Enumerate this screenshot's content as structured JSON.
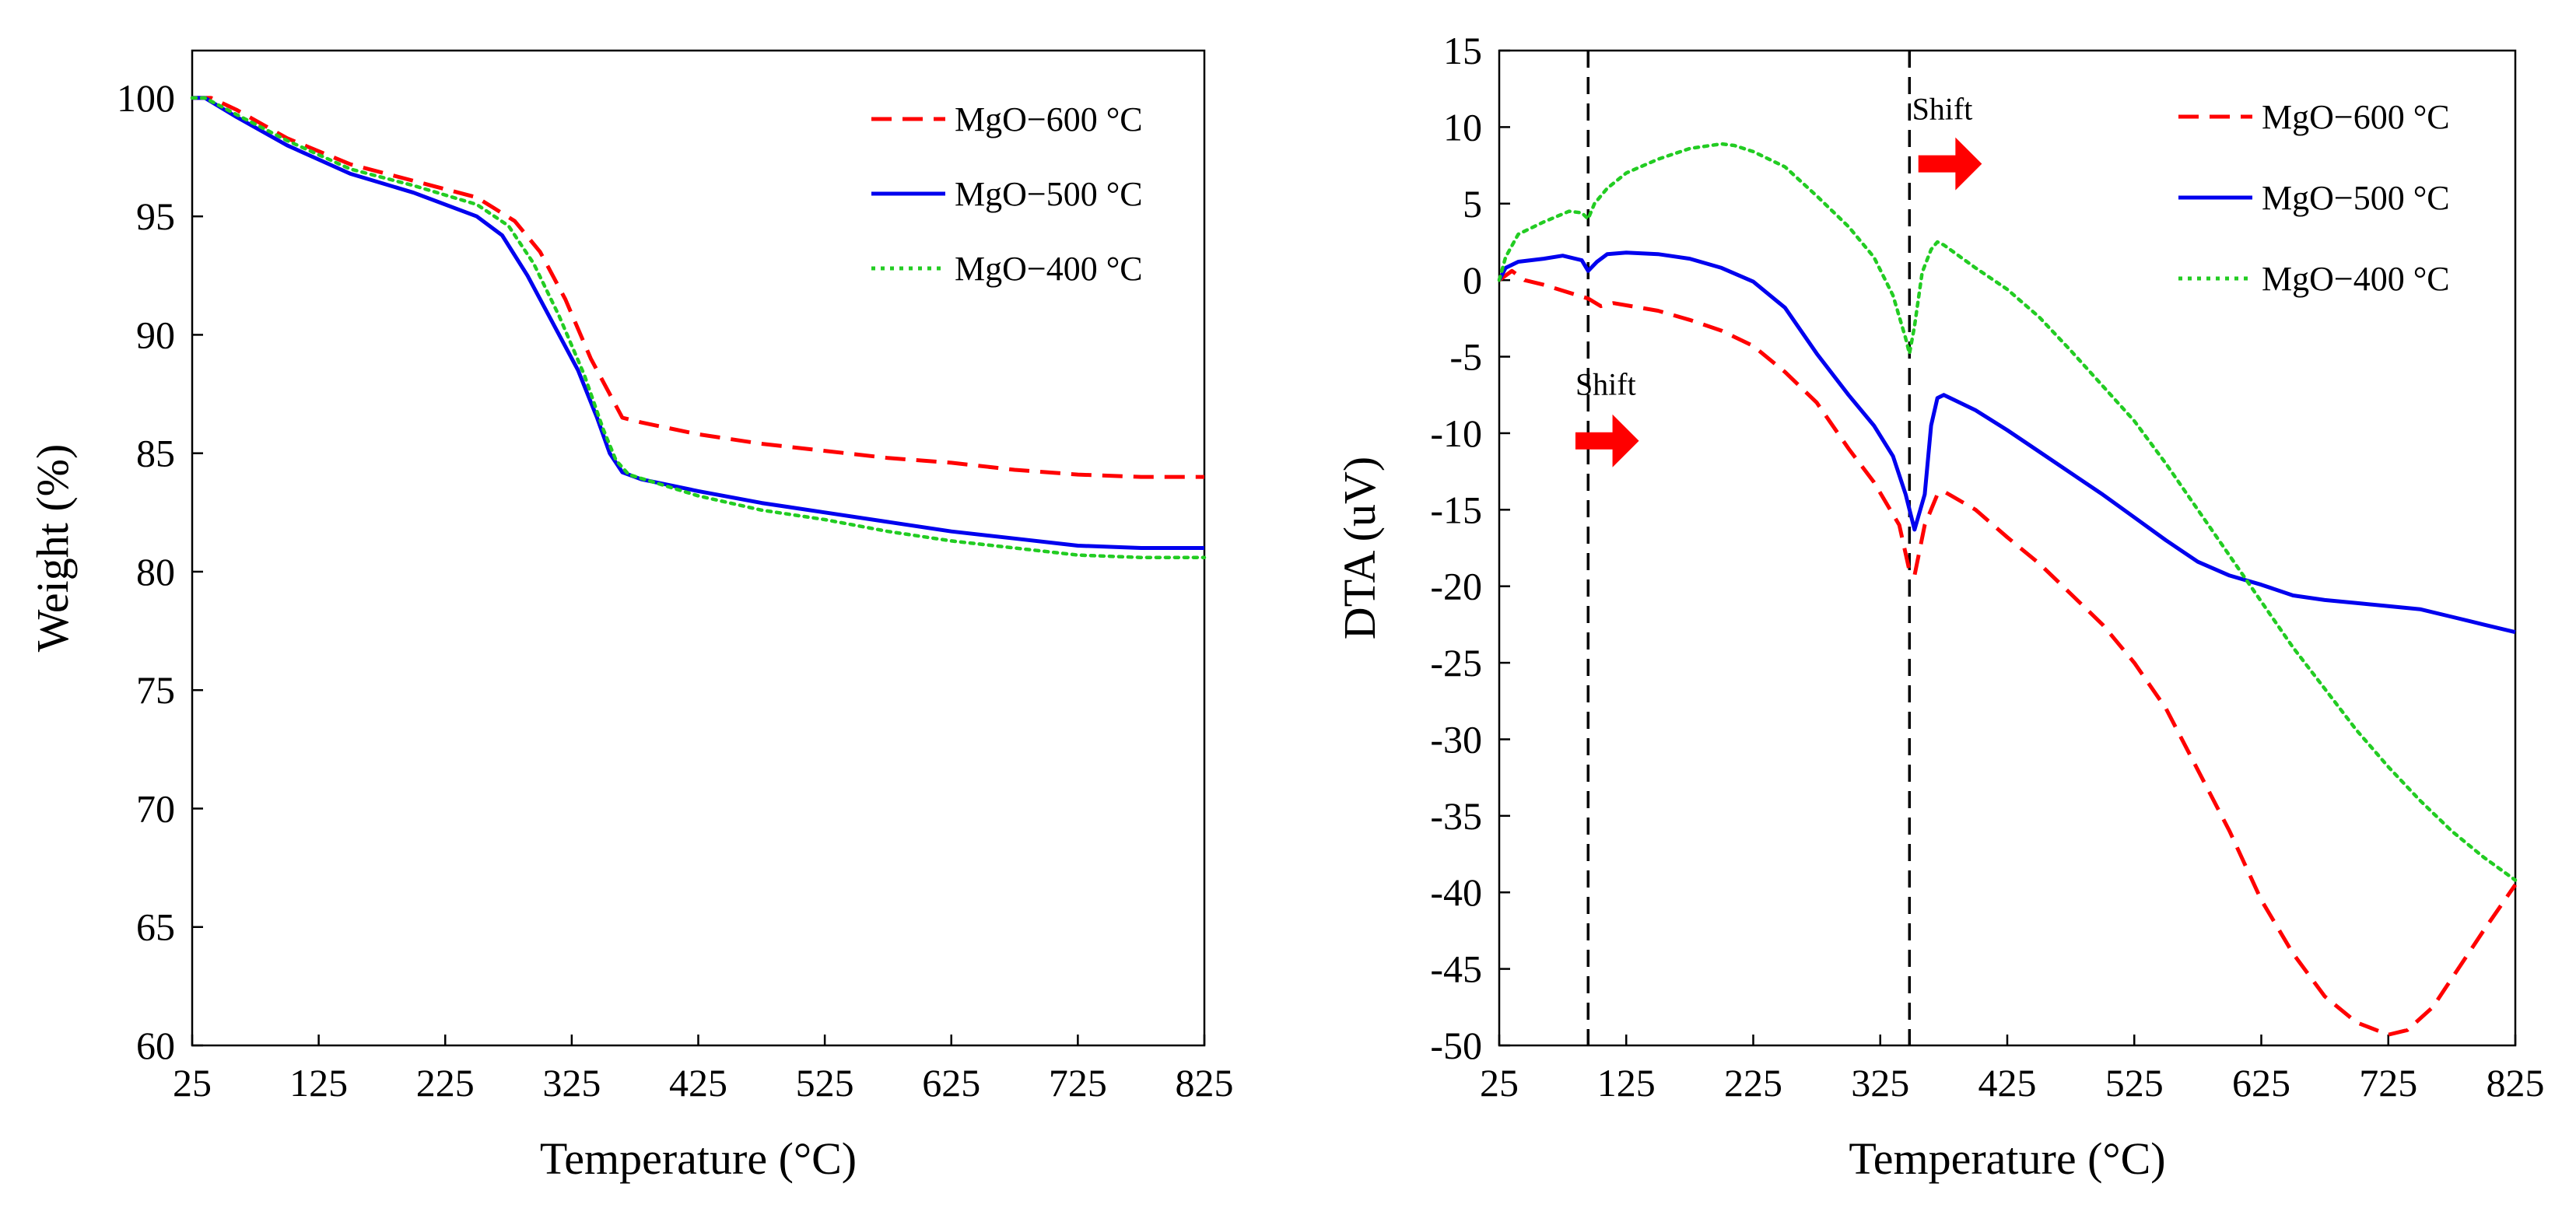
{
  "chart_data": [
    {
      "id": "tga",
      "type": "line",
      "title": "",
      "xlabel": "Temperature (°C)",
      "ylabel": "Weight (%)",
      "xlim": [
        25,
        825
      ],
      "ylim": [
        60,
        102
      ],
      "xticks": [
        25,
        125,
        225,
        325,
        425,
        525,
        625,
        725,
        825
      ],
      "yticks": [
        60,
        65,
        70,
        75,
        80,
        85,
        90,
        95,
        100
      ],
      "grid": false,
      "legend": "top-right",
      "series": [
        {
          "name": "MgO−600 °C",
          "color": "#ff0000",
          "dash": "dashed",
          "points": [
            [
              25,
              100
            ],
            [
              40,
              100
            ],
            [
              60,
              99.5
            ],
            [
              100,
              98.3
            ],
            [
              150,
              97.2
            ],
            [
              200,
              96.5
            ],
            [
              250,
              95.8
            ],
            [
              280,
              94.8
            ],
            [
              300,
              93.5
            ],
            [
              320,
              91.5
            ],
            [
              340,
              89
            ],
            [
              355,
              87.5
            ],
            [
              365,
              86.5
            ],
            [
              380,
              86.3
            ],
            [
              425,
              85.8
            ],
            [
              475,
              85.4
            ],
            [
              525,
              85.1
            ],
            [
              575,
              84.8
            ],
            [
              625,
              84.6
            ],
            [
              675,
              84.3
            ],
            [
              725,
              84.1
            ],
            [
              775,
              84
            ],
            [
              825,
              84
            ]
          ]
        },
        {
          "name": "MgO−500 °C",
          "color": "#0000ee",
          "dash": "solid",
          "points": [
            [
              25,
              100
            ],
            [
              35,
              100
            ],
            [
              60,
              99.2
            ],
            [
              100,
              98
            ],
            [
              150,
              96.8
            ],
            [
              200,
              96
            ],
            [
              250,
              95
            ],
            [
              270,
              94.2
            ],
            [
              290,
              92.5
            ],
            [
              310,
              90.5
            ],
            [
              330,
              88.5
            ],
            [
              345,
              86.5
            ],
            [
              355,
              85
            ],
            [
              365,
              84.2
            ],
            [
              380,
              83.9
            ],
            [
              425,
              83.4
            ],
            [
              475,
              82.9
            ],
            [
              525,
              82.5
            ],
            [
              575,
              82.1
            ],
            [
              625,
              81.7
            ],
            [
              675,
              81.4
            ],
            [
              725,
              81.1
            ],
            [
              775,
              81
            ],
            [
              825,
              81
            ]
          ]
        },
        {
          "name": "MgO−400 °C",
          "color": "#22cc22",
          "dash": "dotted",
          "points": [
            [
              25,
              100
            ],
            [
              35,
              100
            ],
            [
              60,
              99.3
            ],
            [
              100,
              98.2
            ],
            [
              150,
              97
            ],
            [
              200,
              96.3
            ],
            [
              250,
              95.5
            ],
            [
              275,
              94.6
            ],
            [
              295,
              93
            ],
            [
              315,
              90.8
            ],
            [
              335,
              88.3
            ],
            [
              350,
              86
            ],
            [
              360,
              84.7
            ],
            [
              370,
              84.1
            ],
            [
              425,
              83.2
            ],
            [
              475,
              82.6
            ],
            [
              525,
              82.2
            ],
            [
              575,
              81.7
            ],
            [
              625,
              81.3
            ],
            [
              675,
              81
            ],
            [
              725,
              80.7
            ],
            [
              775,
              80.6
            ],
            [
              825,
              80.6
            ]
          ]
        }
      ]
    },
    {
      "id": "dta",
      "type": "line",
      "title": "",
      "xlabel": "Temperature (°C)",
      "ylabel": "DTA (uV)",
      "xlim": [
        25,
        825
      ],
      "ylim": [
        -50,
        15
      ],
      "xticks": [
        25,
        125,
        225,
        325,
        425,
        525,
        625,
        725,
        825
      ],
      "yticks": [
        15,
        10,
        5,
        0,
        -5,
        -10,
        -15,
        -20,
        -25,
        -30,
        -35,
        -40,
        -45,
        -50
      ],
      "grid": false,
      "legend": "top-right",
      "reference_lines_x": [
        95,
        348
      ],
      "annotations": [
        {
          "text": "Shift",
          "x": 85,
          "y": -7.5,
          "arrow_x": [
            85,
            135
          ],
          "arrow_y": -10.5
        },
        {
          "text": "Shift",
          "x": 350,
          "y": 10.5,
          "arrow_x": [
            355,
            405
          ],
          "arrow_y": 7.6
        }
      ],
      "series": [
        {
          "name": "MgO−600 °C",
          "color": "#ff0000",
          "dash": "dashed",
          "points": [
            [
              25,
              0
            ],
            [
              35,
              0.6
            ],
            [
              45,
              0
            ],
            [
              60,
              -0.3
            ],
            [
              95,
              -1.2
            ],
            [
              105,
              -1.7
            ],
            [
              115,
              -1.5
            ],
            [
              150,
              -2
            ],
            [
              175,
              -2.6
            ],
            [
              200,
              -3.3
            ],
            [
              225,
              -4.3
            ],
            [
              250,
              -6
            ],
            [
              275,
              -8
            ],
            [
              300,
              -11
            ],
            [
              320,
              -13.2
            ],
            [
              340,
              -16
            ],
            [
              348,
              -19
            ],
            [
              352,
              -19.3
            ],
            [
              360,
              -16
            ],
            [
              370,
              -14
            ],
            [
              375,
              -13.8
            ],
            [
              400,
              -15
            ],
            [
              425,
              -16.8
            ],
            [
              450,
              -18.5
            ],
            [
              475,
              -20.5
            ],
            [
              500,
              -22.5
            ],
            [
              525,
              -25
            ],
            [
              550,
              -28
            ],
            [
              575,
              -32
            ],
            [
              600,
              -36
            ],
            [
              625,
              -40.5
            ],
            [
              650,
              -44
            ],
            [
              675,
              -46.8
            ],
            [
              700,
              -48.5
            ],
            [
              725,
              -49.3
            ],
            [
              740,
              -49
            ],
            [
              760,
              -47.5
            ],
            [
              780,
              -45
            ],
            [
              800,
              -42.5
            ],
            [
              825,
              -39.5
            ]
          ]
        },
        {
          "name": "MgO−500 °C",
          "color": "#0000ee",
          "dash": "solid",
          "points": [
            [
              25,
              0
            ],
            [
              30,
              0.8
            ],
            [
              40,
              1.2
            ],
            [
              60,
              1.4
            ],
            [
              75,
              1.6
            ],
            [
              90,
              1.3
            ],
            [
              95,
              0.6
            ],
            [
              102,
              1.2
            ],
            [
              110,
              1.7
            ],
            [
              125,
              1.8
            ],
            [
              150,
              1.7
            ],
            [
              175,
              1.4
            ],
            [
              200,
              0.8
            ],
            [
              225,
              -0.1
            ],
            [
              250,
              -1.8
            ],
            [
              275,
              -4.8
            ],
            [
              300,
              -7.5
            ],
            [
              320,
              -9.5
            ],
            [
              335,
              -11.5
            ],
            [
              345,
              -14
            ],
            [
              352,
              -16.3
            ],
            [
              360,
              -14
            ],
            [
              365,
              -9.5
            ],
            [
              370,
              -7.7
            ],
            [
              375,
              -7.5
            ],
            [
              400,
              -8.5
            ],
            [
              425,
              -9.8
            ],
            [
              450,
              -11.2
            ],
            [
              475,
              -12.6
            ],
            [
              500,
              -14
            ],
            [
              525,
              -15.5
            ],
            [
              550,
              -17
            ],
            [
              575,
              -18.4
            ],
            [
              600,
              -19.3
            ],
            [
              625,
              -19.9
            ],
            [
              650,
              -20.6
            ],
            [
              675,
              -20.9
            ],
            [
              700,
              -21.1
            ],
            [
              725,
              -21.3
            ],
            [
              750,
              -21.5
            ],
            [
              775,
              -22
            ],
            [
              800,
              -22.5
            ],
            [
              825,
              -23
            ]
          ]
        },
        {
          "name": "MgO−400 °C",
          "color": "#22cc22",
          "dash": "dotted",
          "points": [
            [
              25,
              0
            ],
            [
              30,
              1.5
            ],
            [
              40,
              3
            ],
            [
              60,
              3.8
            ],
            [
              80,
              4.5
            ],
            [
              90,
              4.4
            ],
            [
              95,
              4
            ],
            [
              100,
              5
            ],
            [
              110,
              6
            ],
            [
              125,
              7
            ],
            [
              150,
              7.9
            ],
            [
              175,
              8.6
            ],
            [
              200,
              8.9
            ],
            [
              210,
              8.8
            ],
            [
              225,
              8.4
            ],
            [
              240,
              7.8
            ],
            [
              250,
              7.4
            ],
            [
              275,
              5.5
            ],
            [
              300,
              3.5
            ],
            [
              320,
              1.5
            ],
            [
              335,
              -1
            ],
            [
              345,
              -3.8
            ],
            [
              348,
              -4.8
            ],
            [
              352,
              -3
            ],
            [
              358,
              0.5
            ],
            [
              365,
              2
            ],
            [
              370,
              2.5
            ],
            [
              375,
              2.3
            ],
            [
              400,
              0.8
            ],
            [
              425,
              -0.6
            ],
            [
              450,
              -2.4
            ],
            [
              475,
              -4.6
            ],
            [
              500,
              -6.9
            ],
            [
              525,
              -9.2
            ],
            [
              550,
              -12
            ],
            [
              575,
              -15
            ],
            [
              600,
              -18
            ],
            [
              625,
              -21
            ],
            [
              650,
              -24
            ],
            [
              675,
              -26.7
            ],
            [
              700,
              -29.4
            ],
            [
              725,
              -31.8
            ],
            [
              750,
              -34
            ],
            [
              775,
              -36
            ],
            [
              800,
              -37.7
            ],
            [
              825,
              -39.2
            ]
          ]
        }
      ]
    }
  ]
}
